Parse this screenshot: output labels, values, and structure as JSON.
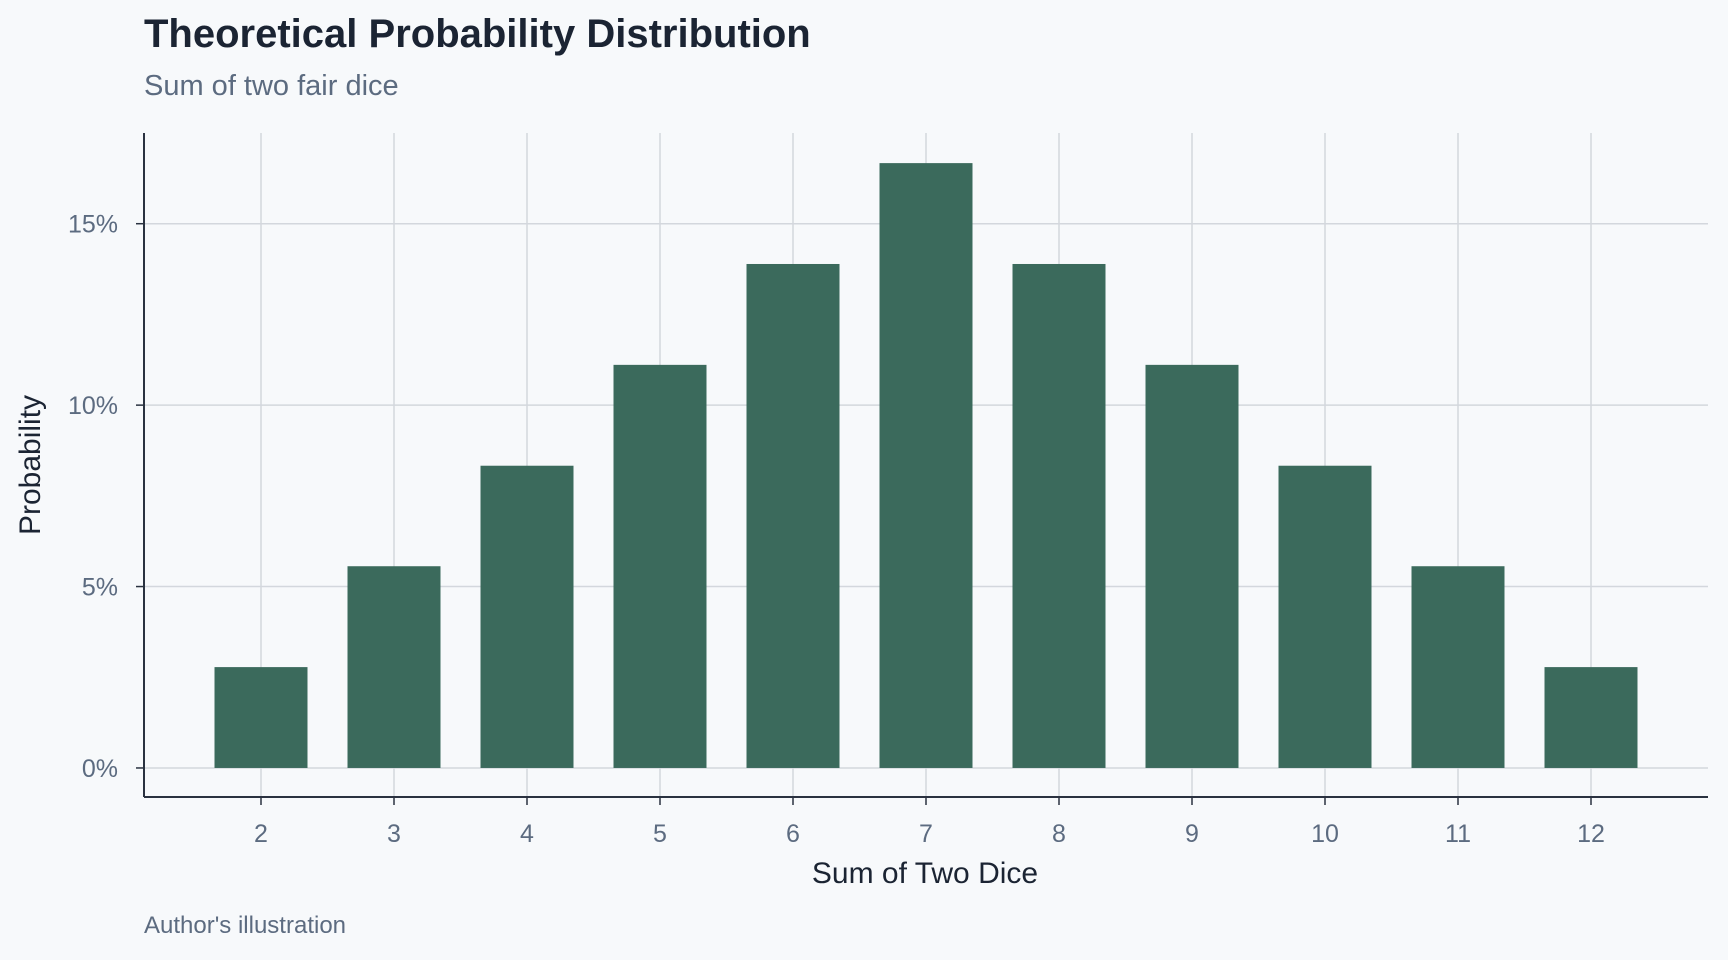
{
  "chart_data": {
    "type": "bar",
    "title": "Theoretical Probability Distribution",
    "subtitle": "Sum of two fair dice",
    "caption": "Author's illustration",
    "xlabel": "Sum of Two Dice",
    "ylabel": "Probability",
    "categories": [
      "2",
      "3",
      "4",
      "5",
      "6",
      "7",
      "8",
      "9",
      "10",
      "11",
      "12"
    ],
    "values": [
      0.0278,
      0.0556,
      0.0833,
      0.1111,
      0.1389,
      0.1667,
      0.1389,
      0.1111,
      0.0833,
      0.0556,
      0.0278
    ],
    "ylim": [
      -0.008,
      0.175
    ],
    "yticks": [
      0,
      0.05,
      0.1,
      0.15
    ],
    "ytick_labels": [
      "0%",
      "5%",
      "10%",
      "15%"
    ],
    "grid": true,
    "legend": "none",
    "colors": {
      "bar": "#3b6a5c",
      "grid": "#d3d7dd",
      "axis": "#2a3240",
      "background": "#f7f9fb"
    }
  }
}
